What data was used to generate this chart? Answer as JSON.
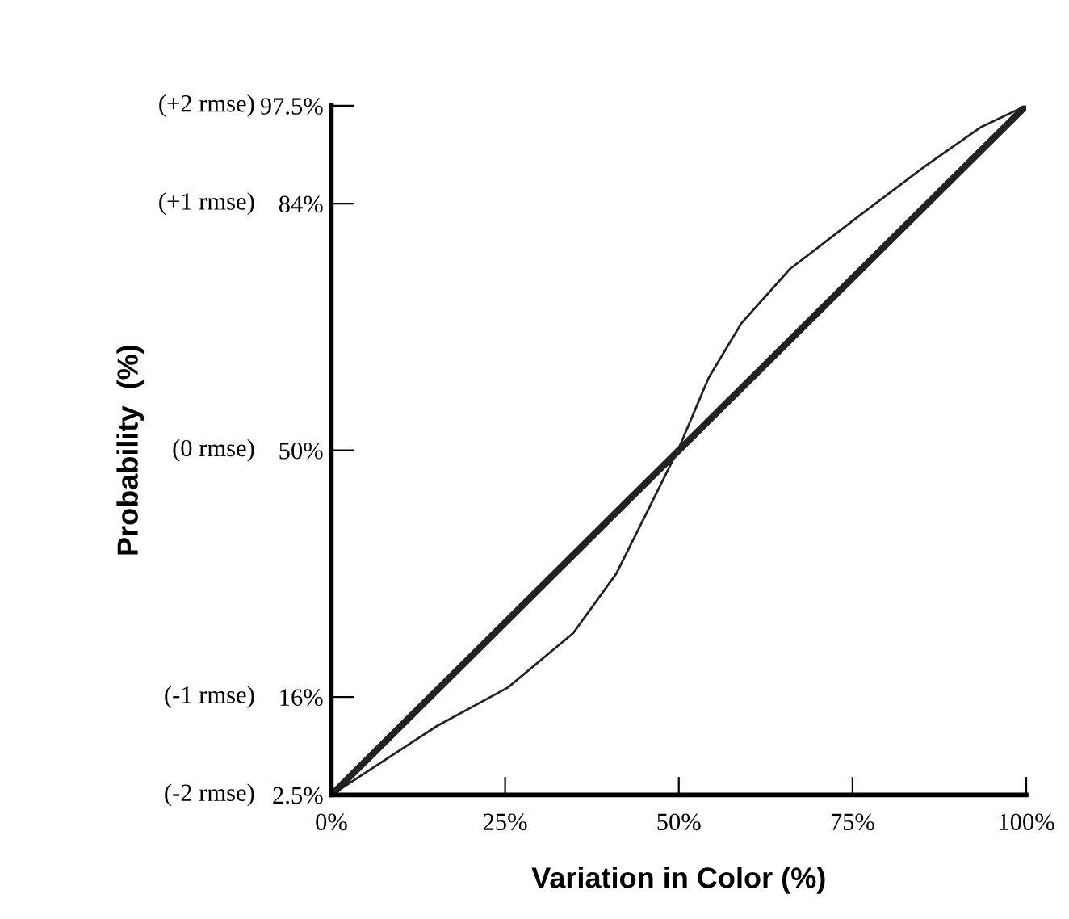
{
  "chart_data": {
    "type": "line",
    "xlabel": "Variation in Color (%)",
    "ylabel": "Probability  (%)",
    "series": [
      {
        "x": [
          0,
          100
        ],
        "values": [
          2.5,
          97.5
        ],
        "color": "#222222"
      },
      {
        "x": [
          0,
          15.2,
          25.4,
          34.8,
          41.0,
          45.7,
          50,
          54.3,
          59,
          66,
          76.2,
          85.5,
          93.4,
          100
        ],
        "values": [
          2.5,
          12.0,
          17.3,
          24.8,
          33.0,
          42.0,
          50.3,
          60,
          67.5,
          75,
          82.5,
          89.2,
          94.5,
          97.5
        ],
        "color": "#222222"
      }
    ],
    "xlim": [
      0,
      100
    ],
    "xticks": [
      {
        "value": 0,
        "label": "0%"
      },
      {
        "value": 25,
        "label": "25%"
      },
      {
        "value": 50,
        "label": "50%"
      },
      {
        "value": 75,
        "label": "75%"
      },
      {
        "value": 100,
        "label": "100%"
      }
    ],
    "ylim": [
      2.5,
      97.5
    ],
    "yticks": [
      {
        "value": 2.5,
        "label": "2.5%"
      },
      {
        "value": 16,
        "label": "16%"
      },
      {
        "value": 50,
        "label": "50%"
      },
      {
        "value": 84,
        "label": "84%"
      },
      {
        "value": 97.5,
        "label": "97.5%"
      }
    ],
    "annotations": [
      "(-2 rmse)",
      "(-1 rmse)",
      "(0 rmse)",
      "(+1 rmse)",
      "(+2 rmse)"
    ],
    "grid": false,
    "legend": false,
    "marker": "none",
    "line_style": "solid"
  }
}
